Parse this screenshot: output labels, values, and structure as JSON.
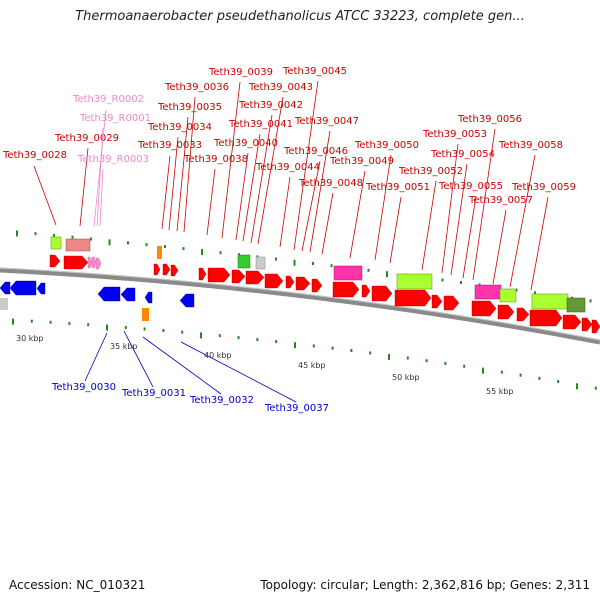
{
  "title": "Thermoanaerobacter pseudethanolicus ATCC 33223, complete gen...",
  "footer": {
    "accession": "Accession: NC_010321",
    "topology": "Topology: circular; Length: 2,362,816 bp; Genes: 2,311"
  },
  "colors": {
    "cds": "#ff0000",
    "cds_reverse": "#0000ee",
    "rrna": "#ff88cc",
    "trna": "#ff8800",
    "label_forward": "#cc0000",
    "label_reverse": "#0000cc",
    "label_rna": "#ee88cc",
    "backbone": "#888888",
    "ticks": "#228822"
  },
  "scale_labels": [
    "30 kbp",
    "35 kbp",
    "40 kbp",
    "45 kbp",
    "50 kbp",
    "55 kbp"
  ],
  "gene_labels": {
    "forward": [
      "Teth39_0028",
      "Teth39_0029",
      "Teth39_0033",
      "Teth39_0034",
      "Teth39_0035",
      "Teth39_0036",
      "Teth39_0038",
      "Teth39_0039",
      "Teth39_0040",
      "Teth39_0041",
      "Teth39_0042",
      "Teth39_0043",
      "Teth39_0044",
      "Teth39_0045",
      "Teth39_0046",
      "Teth39_0047",
      "Teth39_0048",
      "Teth39_0049",
      "Teth39_0050",
      "Teth39_0051",
      "Teth39_0052",
      "Teth39_0053",
      "Teth39_0054",
      "Teth39_0055",
      "Teth39_0056",
      "Teth39_0057",
      "Teth39_0058",
      "Teth39_0059"
    ],
    "rna": [
      "Teth39_R0001",
      "Teth39_R0002",
      "Teth39_R0003"
    ],
    "reverse": [
      "Teth39_0030",
      "Teth39_0031",
      "Teth39_0032",
      "Teth39_0037"
    ]
  }
}
